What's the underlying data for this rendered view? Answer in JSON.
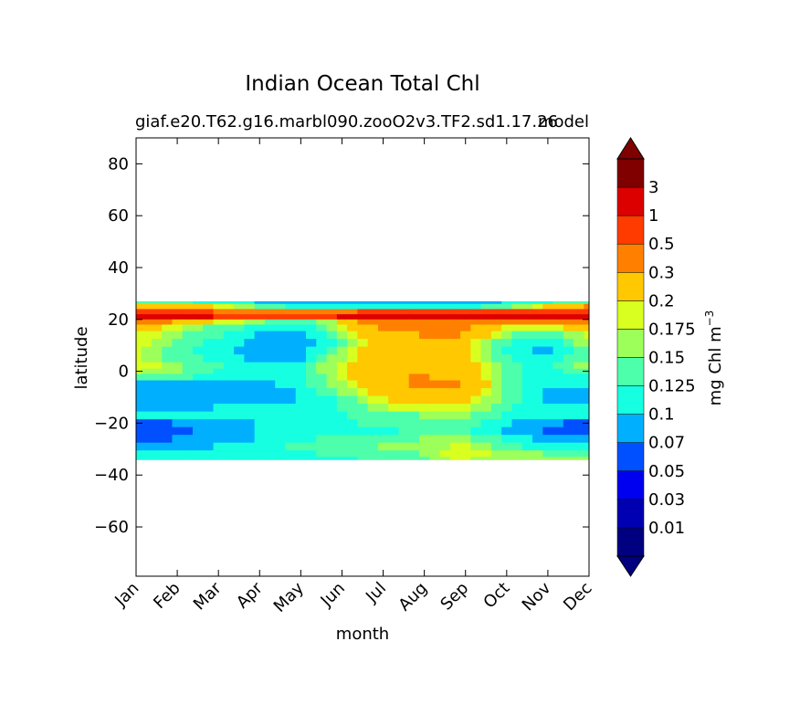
{
  "chart_data": {
    "type": "heatmap",
    "title": "Indian Ocean Total Chl",
    "subtitle_left": "giaf.e20.T62.g16.marbl090.zooO2v3.TF2.sd1.17.26",
    "subtitle_right": "model",
    "xlabel": "month",
    "ylabel": "latitude",
    "x_ticks": [
      "Jan",
      "Feb",
      "Mar",
      "Apr",
      "May",
      "Jun",
      "Jul",
      "Aug",
      "Sep",
      "Oct",
      "Nov",
      "Dec"
    ],
    "y_ticks": [
      80,
      60,
      40,
      20,
      0,
      -20,
      -40,
      -60
    ],
    "y_tick_labels": [
      "80",
      "60",
      "40",
      "20",
      "0",
      "−20",
      "−40",
      "−60"
    ],
    "xlim": [
      0,
      11
    ],
    "ylim": [
      -79,
      90
    ],
    "data_lat_range": [
      -34,
      27
    ],
    "colorbar": {
      "label": "mg Chl m",
      "label_exponent": "−3",
      "extend": "both",
      "levels": [
        "0.01",
        "0.03",
        "0.05",
        "0.07",
        "0.1",
        "0.125",
        "0.15",
        "0.175",
        "0.2",
        "0.3",
        "0.5",
        "1",
        "3"
      ],
      "colors": [
        "#000080",
        "#0000b2",
        "#0000f1",
        "#0050ff",
        "#00b0ff",
        "#16ffe1",
        "#4dffaa",
        "#9dff5a",
        "#d8ff1f",
        "#ffc800",
        "#ff8000",
        "#ff3b00",
        "#dc0000",
        "#800000"
      ],
      "under_color": "#000080",
      "over_color": "#800000"
    },
    "field": {
      "comment_free": true,
      "latitudes": [
        27,
        25,
        23,
        21,
        19,
        17,
        14,
        11,
        8,
        5,
        2,
        0,
        -2,
        -5,
        -8,
        -11,
        -14,
        -17,
        -20,
        -23,
        -26,
        -29,
        -32,
        -34
      ],
      "months": [
        "Jan",
        "Feb",
        "Mar",
        "Apr",
        "May",
        "Jun",
        "Jul",
        "Aug",
        "Sep",
        "Oct",
        "Nov",
        "Dec"
      ],
      "values": [
        [
          0.14,
          0.13,
          0.12,
          0.1,
          0.09,
          0.09,
          0.09,
          0.09,
          0.09,
          0.1,
          0.12,
          0.14
        ],
        [
          0.3,
          0.25,
          0.2,
          0.15,
          0.12,
          0.12,
          0.12,
          0.12,
          0.12,
          0.13,
          0.2,
          0.3
        ],
        [
          0.8,
          0.6,
          0.5,
          0.4,
          0.35,
          0.4,
          0.6,
          0.8,
          0.7,
          0.5,
          0.5,
          0.7
        ],
        [
          1.5,
          1.2,
          1.0,
          0.8,
          0.8,
          1.0,
          1.5,
          2.0,
          1.6,
          1.2,
          1.2,
          1.5
        ],
        [
          0.4,
          0.3,
          0.2,
          0.16,
          0.12,
          0.18,
          0.4,
          0.5,
          0.45,
          0.3,
          0.3,
          0.4
        ],
        [
          0.25,
          0.18,
          0.14,
          0.12,
          0.1,
          0.16,
          0.3,
          0.4,
          0.35,
          0.2,
          0.18,
          0.22
        ],
        [
          0.2,
          0.16,
          0.13,
          0.1,
          0.08,
          0.14,
          0.25,
          0.3,
          0.3,
          0.16,
          0.13,
          0.18
        ],
        [
          0.19,
          0.15,
          0.12,
          0.09,
          0.08,
          0.13,
          0.24,
          0.26,
          0.24,
          0.13,
          0.1,
          0.16
        ],
        [
          0.18,
          0.14,
          0.11,
          0.09,
          0.08,
          0.14,
          0.24,
          0.26,
          0.24,
          0.12,
          0.09,
          0.14
        ],
        [
          0.18,
          0.14,
          0.12,
          0.09,
          0.08,
          0.16,
          0.25,
          0.26,
          0.24,
          0.13,
          0.1,
          0.14
        ],
        [
          0.2,
          0.16,
          0.13,
          0.1,
          0.1,
          0.18,
          0.26,
          0.28,
          0.26,
          0.14,
          0.11,
          0.16
        ],
        [
          0.18,
          0.16,
          0.12,
          0.1,
          0.1,
          0.18,
          0.27,
          0.3,
          0.27,
          0.14,
          0.11,
          0.14
        ],
        [
          0.13,
          0.13,
          0.12,
          0.1,
          0.11,
          0.17,
          0.26,
          0.31,
          0.28,
          0.14,
          0.11,
          0.12
        ],
        [
          0.09,
          0.09,
          0.09,
          0.09,
          0.11,
          0.16,
          0.25,
          0.32,
          0.3,
          0.15,
          0.1,
          0.1
        ],
        [
          0.08,
          0.08,
          0.08,
          0.08,
          0.1,
          0.14,
          0.22,
          0.3,
          0.26,
          0.15,
          0.1,
          0.09
        ],
        [
          0.07,
          0.08,
          0.08,
          0.09,
          0.1,
          0.12,
          0.19,
          0.24,
          0.22,
          0.14,
          0.1,
          0.09
        ],
        [
          0.09,
          0.09,
          0.1,
          0.1,
          0.11,
          0.12,
          0.16,
          0.2,
          0.19,
          0.13,
          0.11,
          0.1
        ],
        [
          0.1,
          0.1,
          0.1,
          0.11,
          0.11,
          0.12,
          0.14,
          0.15,
          0.16,
          0.12,
          0.1,
          0.1
        ],
        [
          0.06,
          0.07,
          0.09,
          0.1,
          0.11,
          0.12,
          0.13,
          0.13,
          0.14,
          0.11,
          0.08,
          0.06
        ],
        [
          0.05,
          0.06,
          0.08,
          0.1,
          0.11,
          0.12,
          0.12,
          0.13,
          0.13,
          0.1,
          0.07,
          0.05
        ],
        [
          0.06,
          0.07,
          0.09,
          0.1,
          0.12,
          0.13,
          0.14,
          0.15,
          0.16,
          0.12,
          0.09,
          0.07
        ],
        [
          0.09,
          0.09,
          0.1,
          0.11,
          0.13,
          0.14,
          0.15,
          0.16,
          0.18,
          0.14,
          0.11,
          0.1
        ],
        [
          0.1,
          0.1,
          0.1,
          0.11,
          0.12,
          0.13,
          0.14,
          0.15,
          0.2,
          0.16,
          0.15,
          0.14
        ],
        [
          0.1,
          0.1,
          0.1,
          0.1,
          0.11,
          0.12,
          0.13,
          0.14,
          0.18,
          0.16,
          0.16,
          0.15
        ]
      ]
    }
  }
}
